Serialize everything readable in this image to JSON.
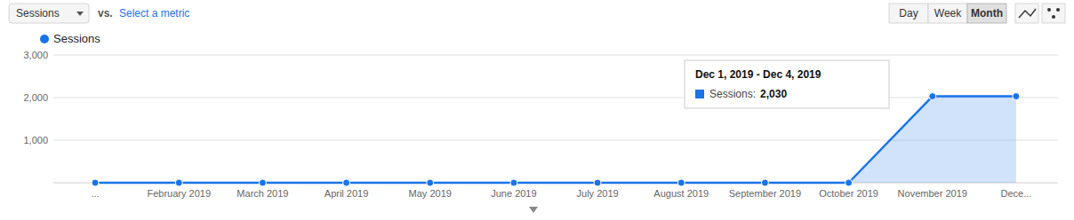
{
  "chart_data": {
    "type": "area",
    "categories": [
      "...",
      "February 2019",
      "March 2019",
      "April 2019",
      "May 2019",
      "June 2019",
      "July 2019",
      "August 2019",
      "September 2019",
      "October 2019",
      "November 2019",
      "Dece..."
    ],
    "series": [
      {
        "name": "Sessions",
        "color": "#1a73e8",
        "marker": "circle",
        "values": [
          0,
          0,
          0,
          0,
          0,
          0,
          0,
          0,
          0,
          0,
          2030,
          2030
        ]
      }
    ],
    "ylim": [
      0,
      3000
    ],
    "yticks": [
      {
        "value": 1000,
        "label": "1,000"
      },
      {
        "value": 2000,
        "label": "2,000"
      },
      {
        "value": 3000,
        "label": "3,000"
      }
    ],
    "grid": true,
    "annotations": [
      "Sessions",
      "vs.",
      "Select a metric",
      "Day",
      "Week",
      "Month",
      "Dec 1, 2019 - Dec 4, 2019",
      "Sessions:",
      "2,030"
    ]
  }
}
